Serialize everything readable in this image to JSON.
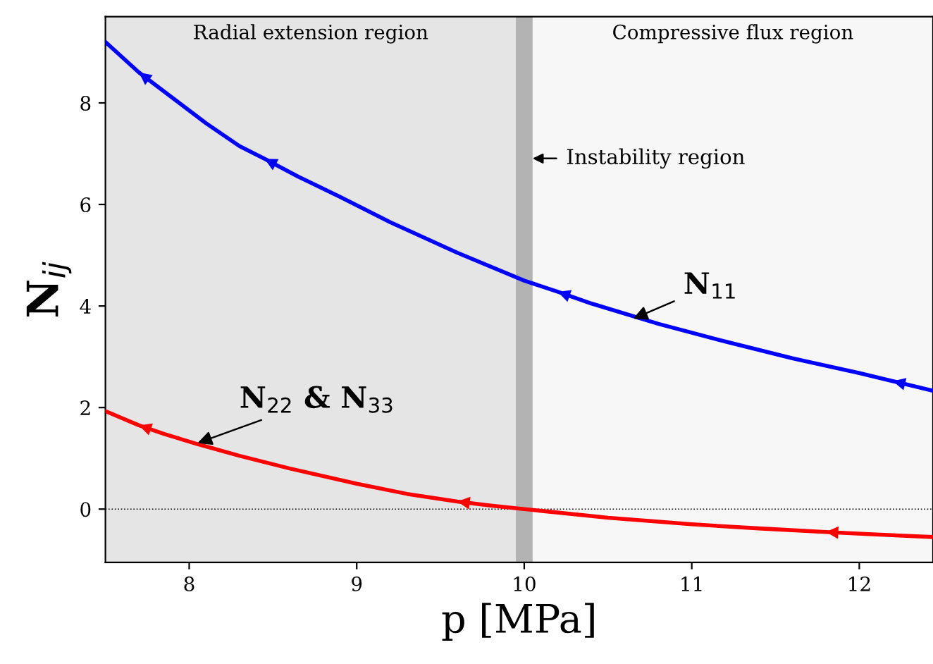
{
  "chart_data": {
    "type": "line",
    "xlabel": "p [MPa]",
    "ylabel": "N$_{ij}$",
    "xlim": [
      7.5,
      12.44
    ],
    "ylim": [
      -1.05,
      9.7
    ],
    "xticks": [
      8,
      9,
      10,
      11,
      12
    ],
    "yticks": [
      0,
      2,
      4,
      6,
      8
    ],
    "grid": false,
    "legend": false,
    "marker": "none",
    "line_style": "solid",
    "series": [
      {
        "color": "#0000ff",
        "x": [
          7.5,
          7.7,
          7.9,
          8.1,
          8.3,
          8.45,
          8.65,
          8.9,
          9.2,
          9.6,
          10.0,
          10.2,
          10.4,
          10.8,
          11.2,
          11.6,
          12.0,
          12.2,
          12.44
        ],
        "values": [
          9.2,
          8.6,
          8.1,
          7.6,
          7.15,
          6.9,
          6.55,
          6.15,
          5.65,
          5.05,
          4.5,
          4.28,
          4.05,
          3.65,
          3.3,
          2.97,
          2.68,
          2.52,
          2.33
        ]
      },
      {
        "color": "#ff0000",
        "x": [
          7.5,
          7.7,
          7.85,
          8.05,
          8.3,
          8.6,
          9.0,
          9.3,
          9.6,
          9.8,
          10.0,
          10.5,
          11.0,
          11.4,
          11.8,
          12.1,
          12.44
        ],
        "values": [
          1.93,
          1.65,
          1.48,
          1.28,
          1.05,
          0.8,
          0.5,
          0.3,
          0.15,
          0.07,
          0.0,
          -0.17,
          -0.3,
          -0.38,
          -0.45,
          -0.5,
          -0.55
        ]
      }
    ],
    "ref_lines": [
      {
        "axis": "y",
        "value": 0,
        "color": "#000000",
        "line_style": "dotted"
      }
    ],
    "bands": [
      {
        "axis": "x",
        "from": 7.5,
        "to": 9.95,
        "label": "Radial extension region",
        "color": "#e5e5e5"
      },
      {
        "axis": "x",
        "from": 10.05,
        "to": 12.44,
        "label": "Compressive flux region",
        "color": "#f7f7f7"
      },
      {
        "axis": "x",
        "from": 9.95,
        "to": 10.05,
        "color": "#b3b3b3"
      }
    ],
    "annotations": [
      "Instability region",
      {
        "text": "N$_{11}$",
        "x": 10.65,
        "y": 3.75
      },
      {
        "text": "N$_{22}$ & N$_{33}$",
        "x": 8.05,
        "y": 1.3
      }
    ]
  }
}
